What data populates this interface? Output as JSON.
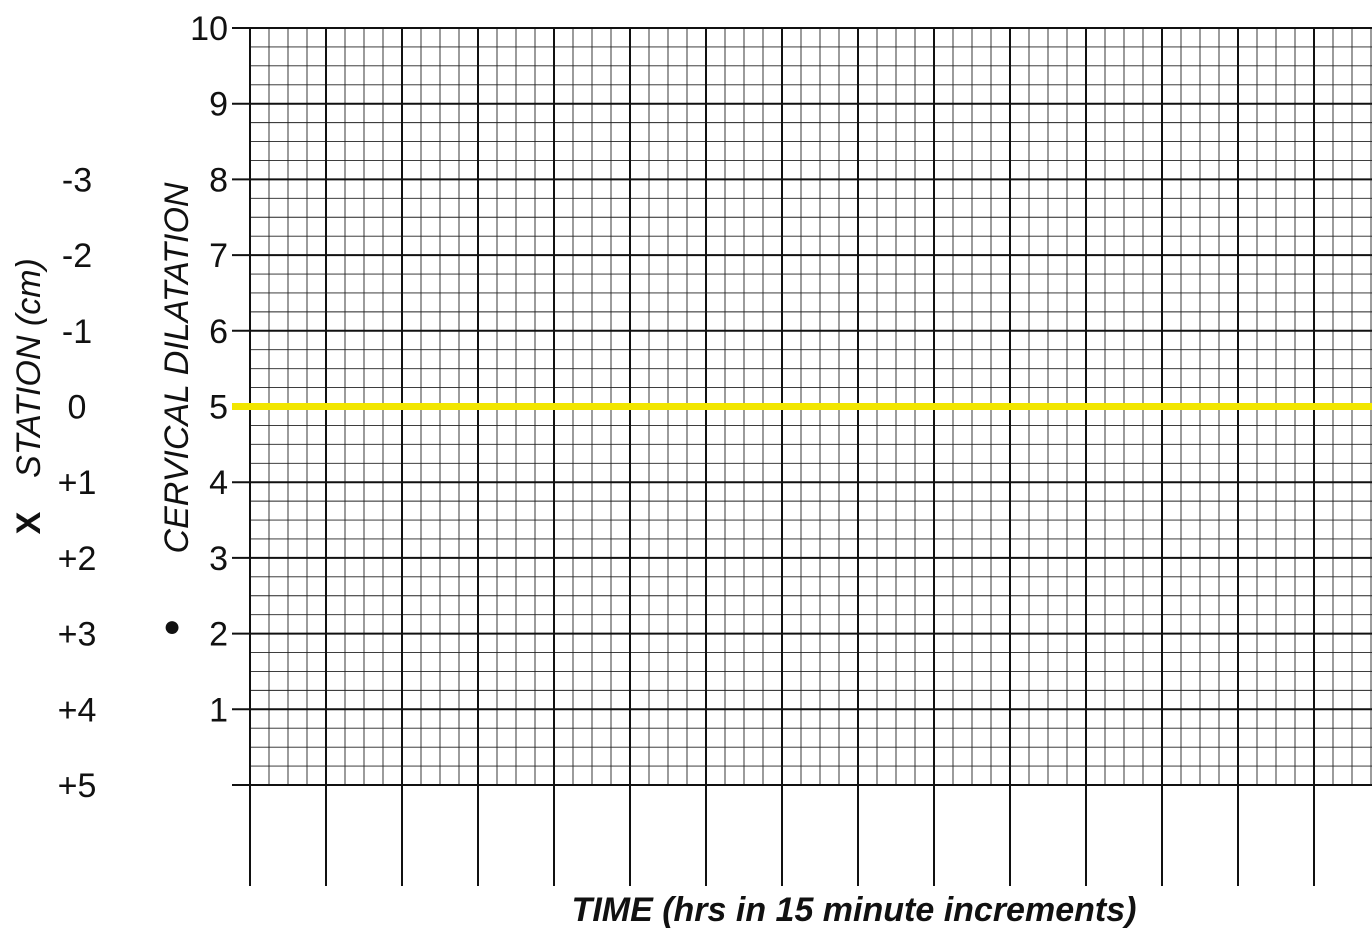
{
  "chart_data": {
    "type": "line",
    "title": "",
    "xlabel": "TIME (hrs in 15 minute increments)",
    "ylabel_left": "STATION (cm)",
    "ylabel_left_marker": "X",
    "ylabel_right": "CERVICAL DILATATION",
    "ylabel_right_marker": "●",
    "dilatation_ticks": [
      "10",
      "9",
      "8",
      "7",
      "6",
      "5",
      "4",
      "3",
      "2",
      "1"
    ],
    "station_ticks": [
      "-3",
      "-2",
      "-1",
      "0",
      "+1",
      "+2",
      "+3",
      "+4",
      "+5"
    ],
    "ylim": [
      0,
      10
    ],
    "grid": true,
    "reference_line": {
      "y": 5,
      "color": "#f2e600"
    },
    "series": []
  }
}
